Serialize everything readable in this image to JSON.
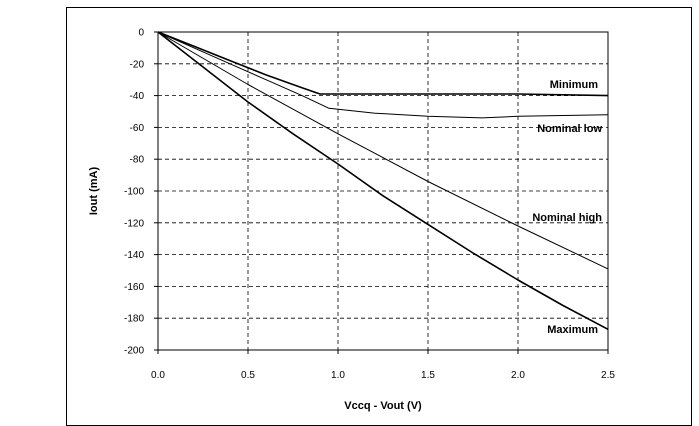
{
  "chart_data": {
    "type": "line",
    "xlabel": "Vccq - Vout (V)",
    "ylabel": "Iout (mA)",
    "xlim": [
      0.0,
      2.5
    ],
    "ylim": [
      -200,
      0
    ],
    "x_ticks": [
      "0.0",
      "0.5",
      "1.0",
      "1.5",
      "2.0",
      "2.5"
    ],
    "y_ticks": [
      "0",
      "-20",
      "-40",
      "-60",
      "-80",
      "-100",
      "-120",
      "-140",
      "-160",
      "-180",
      "-200"
    ],
    "grid": "dashed",
    "series": [
      {
        "name": "Minimum",
        "x": [
          0.0,
          0.2,
          0.4,
          0.6,
          0.8,
          0.9,
          1.0,
          1.5,
          2.0,
          2.5
        ],
        "y": [
          0,
          -9,
          -18,
          -27,
          -35,
          -39,
          -39,
          -39,
          -39,
          -40
        ]
      },
      {
        "name": "Nominal low",
        "x": [
          0.0,
          0.2,
          0.4,
          0.6,
          0.8,
          0.95,
          1.2,
          1.5,
          1.8,
          2.0,
          2.5
        ],
        "y": [
          0,
          -10,
          -20,
          -30,
          -40,
          -48,
          -51,
          -53,
          -54,
          -53,
          -52
        ]
      },
      {
        "name": "Nominal high",
        "x": [
          0.0,
          0.5,
          1.0,
          1.5,
          2.0,
          2.5
        ],
        "y": [
          0,
          -33,
          -64,
          -94,
          -122,
          -149
        ]
      },
      {
        "name": "Maximum",
        "x": [
          0.0,
          0.25,
          0.5,
          0.75,
          1.0,
          1.25,
          1.5,
          1.75,
          2.0,
          2.25,
          2.5
        ],
        "y": [
          0,
          -22,
          -44,
          -64,
          -83,
          -103,
          -121,
          -139,
          -156,
          -172,
          -187
        ]
      }
    ]
  }
}
